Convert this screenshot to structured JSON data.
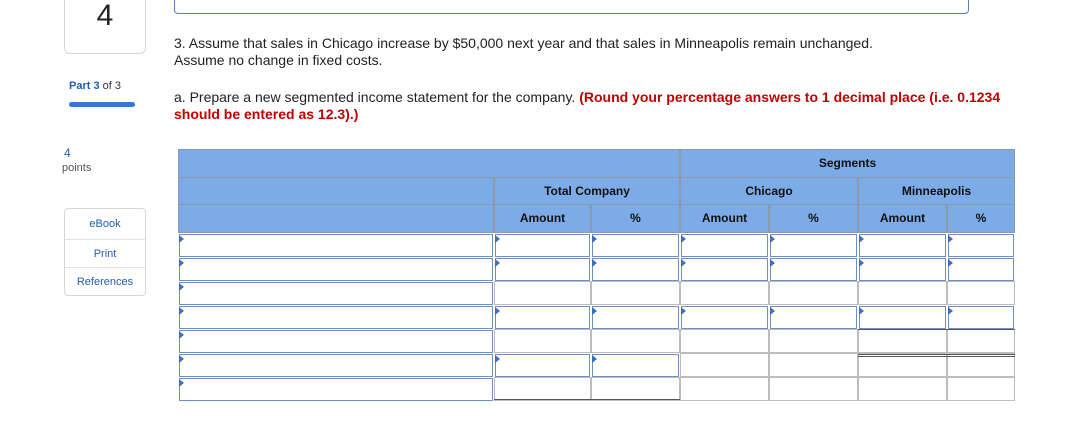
{
  "sidebar": {
    "question_number": "4",
    "part_prefix": "Part",
    "part_current": "3",
    "part_of": "of 3",
    "points_value": "4",
    "points_label": "points",
    "links": [
      "eBook",
      "Print",
      "References"
    ]
  },
  "question": {
    "line1": "3. Assume that sales in Chicago increase by $50,000 next year and that sales in Minneapolis remain unchanged.",
    "line2": "Assume no change in fixed costs.",
    "sub_prefix": "a. Prepare a new segmented income statement for the company.",
    "sub_hint": "(Round your percentage answers to 1 decimal place (i.e. 0.1234 should be entered as 12.3).)"
  },
  "table": {
    "header_segments": "Segments",
    "header_total_company": "Total Company",
    "header_chicago": "Chicago",
    "header_minneapolis": "Minneapolis",
    "col_amount": "Amount",
    "col_percent": "%",
    "row_count": 7
  },
  "colors": {
    "header_blue": "#7cabe8",
    "link_blue": "#1f5eb0",
    "hint_red": "#c00000",
    "input_border": "#6e8fbf"
  }
}
